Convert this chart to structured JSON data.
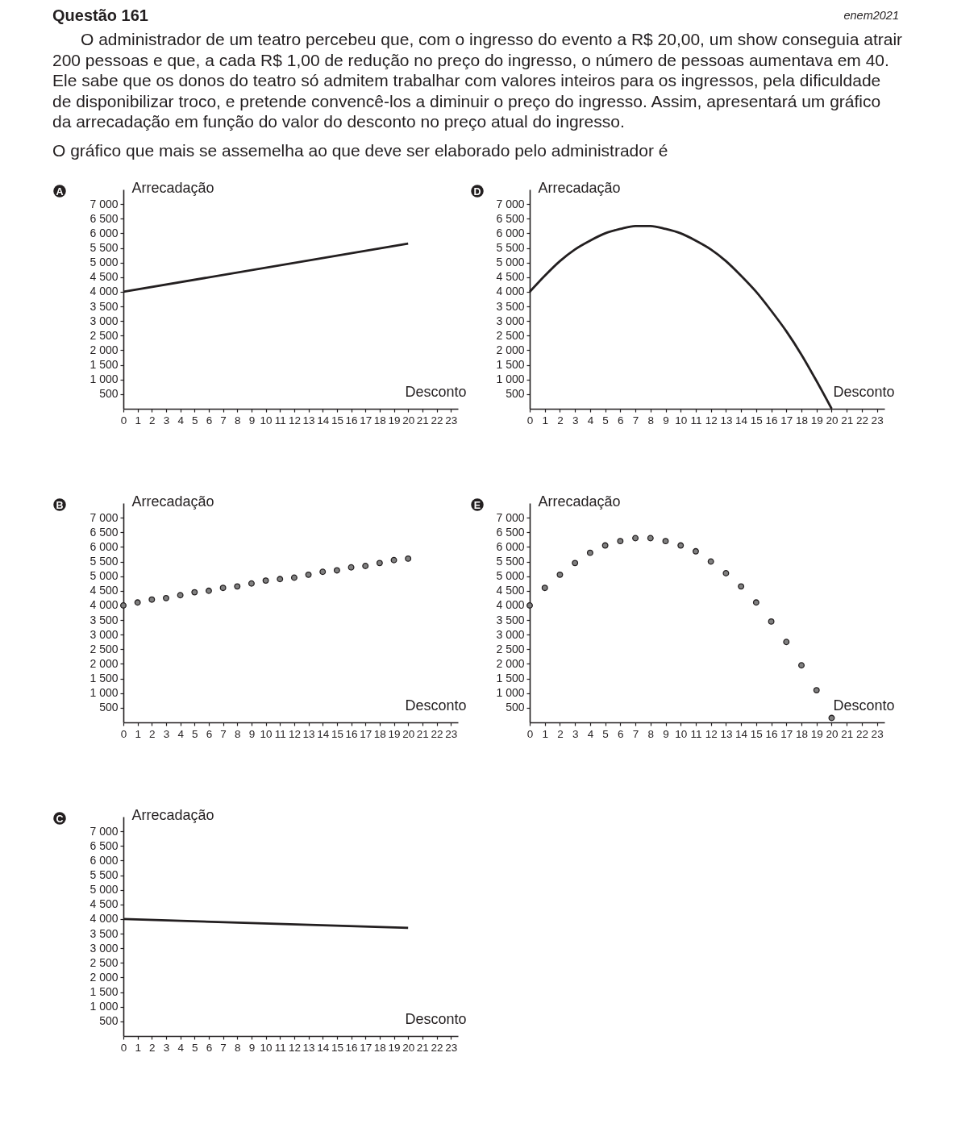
{
  "chart_data": [
    {
      "type": "other",
      "title": "Questão 161",
      "annotations": [
        "enem2021",
        "O administrador de um teatro percebeu que, com o ingresso do evento a R$ 20,00, um show conseguia atrair",
        "200 pessoas e que, a cada R$ 1,00 de redução no preço do ingresso, o número de pessoas aumentava em 40.",
        "Ele sabe que os donos do teatro só admitem trabalhar com valores inteiros para os ingressos, pela dificuldade",
        "de disponibilizar troco, e pretende convencê-los a diminuir o preço do ingresso. Assim, apresentará um gráfico",
        "da arrecadação em função do valor do desconto no preço atual do ingresso.",
        "O gráfico que mais se assemelha ao que deve ser elaborado pelo administrador é"
      ]
    },
    {
      "type": "line",
      "title": "A",
      "xlabel": "Desconto",
      "ylabel": "Arrecadação",
      "x": [
        0,
        20
      ],
      "values": [
        4000,
        5650
      ],
      "color": "#231f20",
      "xlim": [
        0,
        23.5
      ],
      "ylim": [
        0,
        7500
      ],
      "xticks": [
        0,
        1,
        2,
        3,
        4,
        5,
        6,
        7,
        8,
        9,
        10,
        11,
        12,
        13,
        14,
        15,
        16,
        17,
        18,
        19,
        20,
        21,
        22,
        23
      ],
      "yticks": [
        {
          "value": 500,
          "label": "500"
        },
        {
          "value": 1000,
          "label": "1 000"
        },
        {
          "value": 1500,
          "label": "1 500"
        },
        {
          "value": 2000,
          "label": "2 000"
        },
        {
          "value": 2500,
          "label": "2 500"
        },
        {
          "value": 3000,
          "label": "3 000"
        },
        {
          "value": 3500,
          "label": "3 500"
        },
        {
          "value": 4000,
          "label": "4 000"
        },
        {
          "value": 4500,
          "label": "4 500"
        },
        {
          "value": 5000,
          "label": "5 000"
        },
        {
          "value": 5500,
          "label": "5 500"
        },
        {
          "value": 6000,
          "label": "6 000"
        },
        {
          "value": 6500,
          "label": "6 500"
        },
        {
          "value": 7000,
          "label": "7 000"
        }
      ]
    },
    {
      "type": "line",
      "title": "D",
      "xlabel": "Desconto",
      "ylabel": "Arrecadação",
      "x": [
        0,
        1,
        2,
        3,
        4,
        5,
        6,
        7,
        7.5,
        8,
        9,
        10,
        11,
        12,
        13,
        14,
        15,
        16,
        17,
        18,
        19,
        20
      ],
      "values": [
        4000,
        4550,
        5050,
        5450,
        5750,
        6000,
        6150,
        6250,
        6250,
        6250,
        6150,
        6000,
        5750,
        5450,
        5050,
        4550,
        4000,
        3350,
        2650,
        1850,
        950,
        0
      ],
      "color": "#231f20",
      "xlim": [
        0,
        23.5
      ],
      "ylim": [
        0,
        7500
      ],
      "xticks": [
        0,
        1,
        2,
        3,
        4,
        5,
        6,
        7,
        8,
        9,
        10,
        11,
        12,
        13,
        14,
        15,
        16,
        17,
        18,
        19,
        20,
        21,
        22,
        23
      ],
      "yticks": [
        {
          "value": 500,
          "label": "500"
        },
        {
          "value": 1000,
          "label": "1 000"
        },
        {
          "value": 1500,
          "label": "1 500"
        },
        {
          "value": 2000,
          "label": "2 000"
        },
        {
          "value": 2500,
          "label": "2 500"
        },
        {
          "value": 3000,
          "label": "3 000"
        },
        {
          "value": 3500,
          "label": "3 500"
        },
        {
          "value": 4000,
          "label": "4 000"
        },
        {
          "value": 4500,
          "label": "4 500"
        },
        {
          "value": 5000,
          "label": "5 000"
        },
        {
          "value": 5500,
          "label": "5 500"
        },
        {
          "value": 6000,
          "label": "6 000"
        },
        {
          "value": 6500,
          "label": "6 500"
        },
        {
          "value": 7000,
          "label": "7 000"
        }
      ]
    },
    {
      "type": "scatter",
      "title": "B",
      "xlabel": "Desconto",
      "ylabel": "Arrecadação",
      "marker": "circle",
      "x": [
        0,
        1,
        2,
        3,
        4,
        5,
        6,
        7,
        8,
        9,
        10,
        11,
        12,
        13,
        14,
        15,
        16,
        17,
        18,
        19,
        20
      ],
      "values": [
        4000,
        4100,
        4200,
        4250,
        4350,
        4450,
        4500,
        4600,
        4650,
        4750,
        4850,
        4900,
        4950,
        5050,
        5150,
        5200,
        5300,
        5350,
        5450,
        5550,
        5600
      ],
      "color": "#808080",
      "xlim": [
        0,
        23.5
      ],
      "ylim": [
        0,
        7500
      ],
      "xticks": [
        0,
        1,
        2,
        3,
        4,
        5,
        6,
        7,
        8,
        9,
        10,
        11,
        12,
        13,
        14,
        15,
        16,
        17,
        18,
        19,
        20,
        21,
        22,
        23
      ],
      "yticks": [
        {
          "value": 500,
          "label": "500"
        },
        {
          "value": 1000,
          "label": "1 000"
        },
        {
          "value": 1500,
          "label": "1 500"
        },
        {
          "value": 2000,
          "label": "2 000"
        },
        {
          "value": 2500,
          "label": "2 500"
        },
        {
          "value": 3000,
          "label": "3 000"
        },
        {
          "value": 3500,
          "label": "3 500"
        },
        {
          "value": 4000,
          "label": "4 000"
        },
        {
          "value": 4500,
          "label": "4 500"
        },
        {
          "value": 5000,
          "label": "5 000"
        },
        {
          "value": 5500,
          "label": "5 500"
        },
        {
          "value": 6000,
          "label": "6 000"
        },
        {
          "value": 6500,
          "label": "6 500"
        },
        {
          "value": 7000,
          "label": "7 000"
        }
      ]
    },
    {
      "type": "scatter",
      "title": "E",
      "xlabel": "Desconto",
      "ylabel": "Arrecadação",
      "marker": "circle",
      "x": [
        0,
        1,
        2,
        3,
        4,
        5,
        6,
        7,
        8,
        9,
        10,
        11,
        12,
        13,
        14,
        15,
        16,
        17,
        18,
        19,
        20
      ],
      "values": [
        4000,
        4600,
        5050,
        5450,
        5800,
        6050,
        6200,
        6300,
        6300,
        6200,
        6050,
        5850,
        5500,
        5100,
        4650,
        4100,
        3450,
        2750,
        1950,
        1100,
        150
      ],
      "color": "#808080",
      "xlim": [
        0,
        23.5
      ],
      "ylim": [
        0,
        7500
      ],
      "xticks": [
        0,
        1,
        2,
        3,
        4,
        5,
        6,
        7,
        8,
        9,
        10,
        11,
        12,
        13,
        14,
        15,
        16,
        17,
        18,
        19,
        20,
        21,
        22,
        23
      ],
      "yticks": [
        {
          "value": 500,
          "label": "500"
        },
        {
          "value": 1000,
          "label": "1 000"
        },
        {
          "value": 1500,
          "label": "1 500"
        },
        {
          "value": 2000,
          "label": "2 000"
        },
        {
          "value": 2500,
          "label": "2 500"
        },
        {
          "value": 3000,
          "label": "3 000"
        },
        {
          "value": 3500,
          "label": "3 500"
        },
        {
          "value": 4000,
          "label": "4 000"
        },
        {
          "value": 4500,
          "label": "4 500"
        },
        {
          "value": 5000,
          "label": "5 000"
        },
        {
          "value": 5500,
          "label": "5 500"
        },
        {
          "value": 6000,
          "label": "6 000"
        },
        {
          "value": 6500,
          "label": "6 500"
        },
        {
          "value": 7000,
          "label": "7 000"
        }
      ]
    },
    {
      "type": "line",
      "title": "C",
      "xlabel": "Desconto",
      "ylabel": "Arrecadação",
      "x": [
        0,
        20
      ],
      "values": [
        4000,
        3700
      ],
      "color": "#231f20",
      "xlim": [
        0,
        23.5
      ],
      "ylim": [
        0,
        7500
      ],
      "xticks": [
        0,
        1,
        2,
        3,
        4,
        5,
        6,
        7,
        8,
        9,
        10,
        11,
        12,
        13,
        14,
        15,
        16,
        17,
        18,
        19,
        20,
        21,
        22,
        23
      ],
      "yticks": [
        {
          "value": 500,
          "label": "500"
        },
        {
          "value": 1000,
          "label": "1 000"
        },
        {
          "value": 1500,
          "label": "1 500"
        },
        {
          "value": 2000,
          "label": "2 000"
        },
        {
          "value": 2500,
          "label": "2 500"
        },
        {
          "value": 3000,
          "label": "3 000"
        },
        {
          "value": 3500,
          "label": "3 500"
        },
        {
          "value": 4000,
          "label": "4 000"
        },
        {
          "value": 4500,
          "label": "4 500"
        },
        {
          "value": 5000,
          "label": "5 000"
        },
        {
          "value": 5500,
          "label": "5 500"
        },
        {
          "value": 6000,
          "label": "6 000"
        },
        {
          "value": 6500,
          "label": "6 500"
        },
        {
          "value": 7000,
          "label": "7 000"
        }
      ]
    }
  ]
}
